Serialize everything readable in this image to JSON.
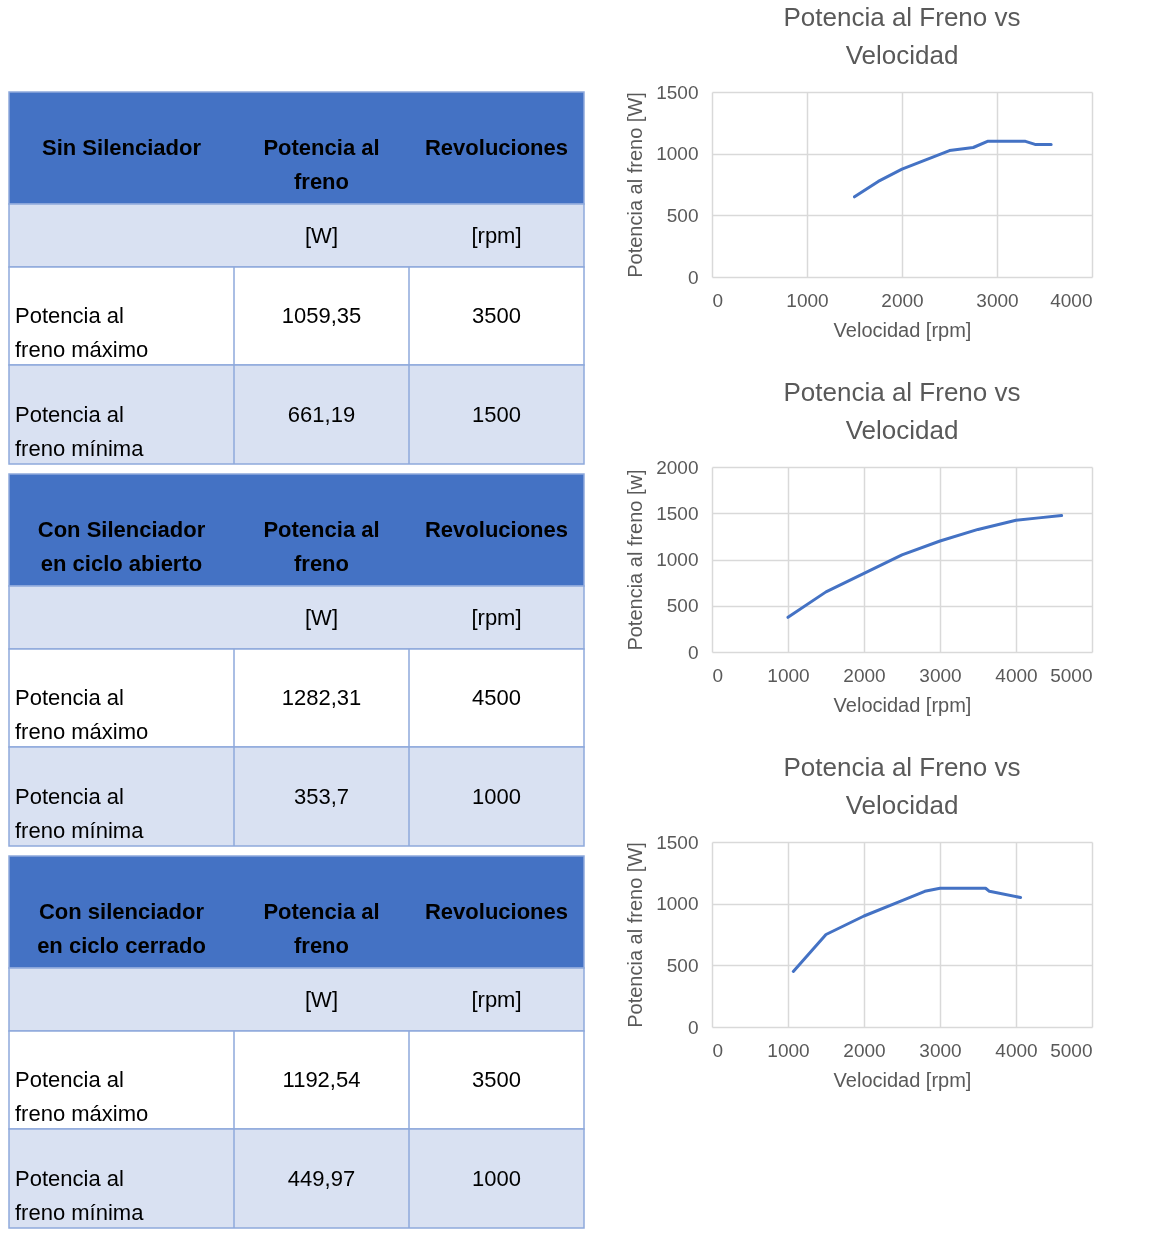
{
  "chart_data": [
    {
      "type": "other",
      "annotations": [
        "Sin Silenciador",
        "Potencia al freno",
        "Revoluciones",
        "[W]",
        "[rpm]",
        "Potencia al freno máximo",
        "1059,35",
        "3500",
        "Potencia al freno mínima",
        "661,19",
        "1500"
      ]
    },
    {
      "type": "line",
      "title": "Potencia al Freno vs Velocidad",
      "xlabel": "Velocidad [rpm]",
      "ylabel": "Potencia al freno [W]",
      "xlim": [
        0,
        4000
      ],
      "xticks": [
        0,
        1000,
        2000,
        3000,
        4000
      ],
      "ylim": [
        0,
        1500
      ],
      "yticks": [
        0,
        500,
        1000,
        1500
      ],
      "grid": true,
      "marker": "none",
      "line_style": "solid",
      "series": [
        {
          "color": "#4472c4",
          "x": [
            1500,
            1750,
            2000,
            2250,
            2500,
            2750,
            2900,
            3300,
            3400,
            3570
          ],
          "values": [
            650,
            775,
            875,
            950,
            1025,
            1050,
            1100,
            1100,
            1075,
            1075
          ]
        }
      ]
    },
    {
      "type": "other",
      "annotations": [
        "Con Silenciador en ciclo abierto",
        "Potencia al freno",
        "Revoluciones",
        "[W]",
        "[rpm]",
        "Potencia al freno máximo",
        "1282,31",
        "4500",
        "Potencia al freno mínima",
        "353,7",
        "1000"
      ]
    },
    {
      "type": "line",
      "title": "Potencia al Freno vs Velocidad",
      "xlabel": "Velocidad [rpm]",
      "ylabel": "Potencia al freno [w]",
      "xlim": [
        0,
        5000
      ],
      "xticks": [
        0,
        1000,
        2000,
        3000,
        4000,
        5000
      ],
      "ylim": [
        0,
        2000
      ],
      "yticks": [
        0,
        500,
        1000,
        1500,
        2000
      ],
      "grid": true,
      "marker": "none",
      "line_style": "solid",
      "series": [
        {
          "color": "#4472c4",
          "x": [
            1000,
            1500,
            2000,
            2500,
            3000,
            3500,
            4000,
            4300,
            4600
          ],
          "values": [
            375,
            650,
            850,
            1050,
            1200,
            1325,
            1425,
            1450,
            1475
          ]
        }
      ]
    },
    {
      "type": "other",
      "annotations": [
        "Con silenciador en ciclo cerrado",
        "Potencia al freno",
        "Revoluciones",
        "[W]",
        "[rpm]",
        "Potencia al freno máximo",
        "1192,54",
        "3500",
        "Potencia al freno mínima",
        "449,97",
        "1000"
      ]
    },
    {
      "type": "line",
      "title": "Potencia al Freno vs Velocidad",
      "xlabel": "Velocidad [rpm]",
      "ylabel": "Potencia al freno [W]",
      "xlim": [
        0,
        5000
      ],
      "xticks": [
        0,
        1000,
        2000,
        3000,
        4000,
        5000
      ],
      "ylim": [
        0,
        1500
      ],
      "yticks": [
        0,
        500,
        1000,
        1500
      ],
      "grid": true,
      "marker": "none",
      "line_style": "solid",
      "series": [
        {
          "color": "#4472c4",
          "x": [
            1070,
            1500,
            2000,
            2500,
            2800,
            3000,
            3600,
            3650,
            4060
          ],
          "values": [
            450,
            750,
            900,
            1025,
            1100,
            1125,
            1125,
            1100,
            1050
          ]
        }
      ]
    }
  ]
}
